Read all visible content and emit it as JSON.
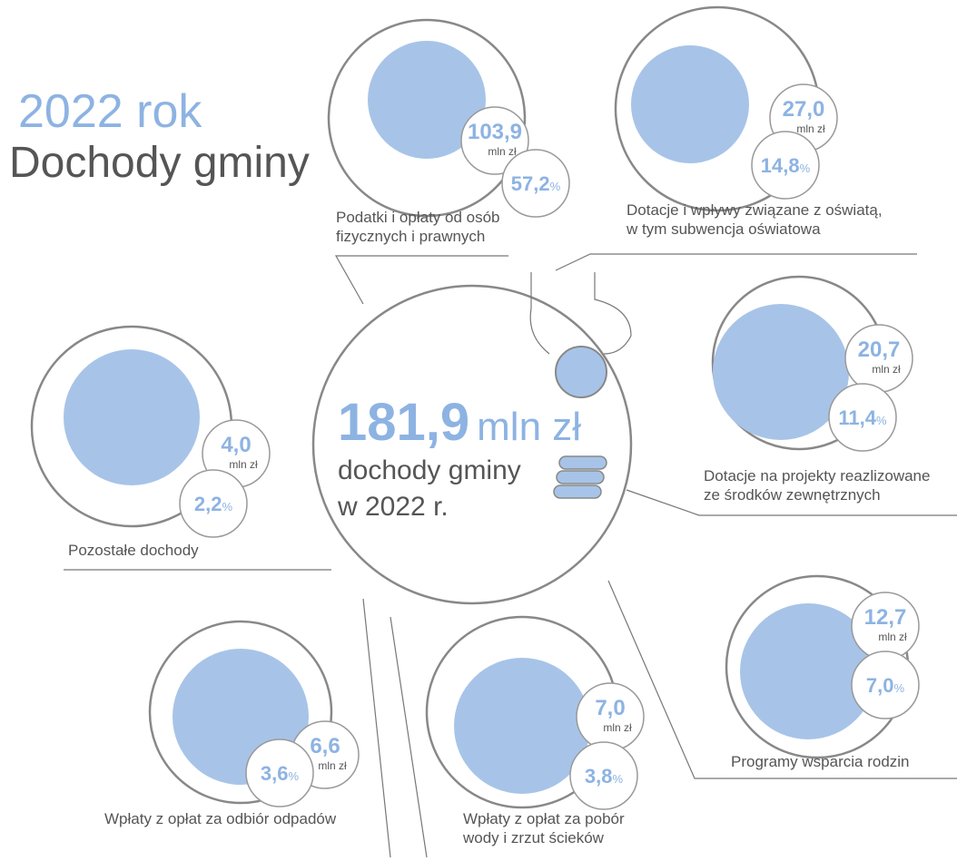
{
  "header": {
    "year_title": "2022 rok",
    "title": "Dochody gminy"
  },
  "amount_unit": "mln zł",
  "share_unit": "%",
  "center": {
    "value": "181,9",
    "label_lines": [
      "dochody gminy",
      "w 2022 r."
    ]
  },
  "items": [
    {
      "label_lines": [
        "Podatki i opłaty od osób",
        "fizycznych i prawnych"
      ],
      "amount": "103,9",
      "share": "57,2"
    },
    {
      "label_lines": [
        "Dotacje i wpływy związane z oświatą,",
        "w tym subwencja oświatowa"
      ],
      "amount": "27,0",
      "share": "14,8"
    },
    {
      "label_lines": [
        "Dotacje na projekty reazlizowane",
        "ze środków zewnętrznych"
      ],
      "amount": "20,7",
      "share": "11,4"
    },
    {
      "label_lines": [
        "Programy wsparcia rodzin"
      ],
      "amount": "12,7",
      "share": "7,0"
    },
    {
      "label_lines": [
        "Wpłaty z opłat za pobór",
        "wody i zrzut ścieków"
      ],
      "amount": "7,0",
      "share": "3,8"
    },
    {
      "label_lines": [
        "Wpłaty z opłat za odbiór odpadów"
      ],
      "amount": "6,6",
      "share": "3,6"
    },
    {
      "label_lines": [
        "Pozostałe dochody"
      ],
      "amount": "4,0",
      "share": "2,2"
    }
  ]
}
